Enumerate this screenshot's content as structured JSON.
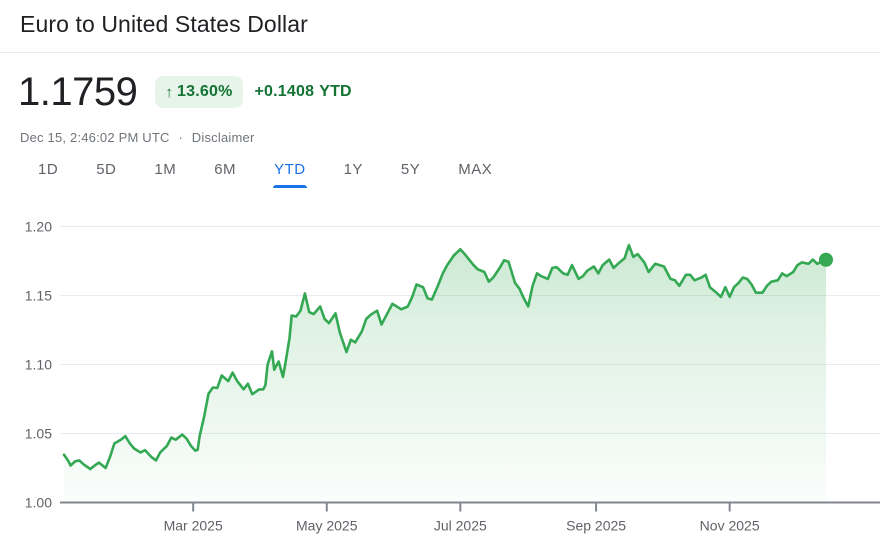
{
  "header": {
    "title": "Euro to United States Dollar"
  },
  "quote": {
    "price": "1.1759",
    "arrow": "↑",
    "change_percent": "13.60%",
    "change_abs": "+0.1408",
    "change_period": "YTD",
    "timestamp": "Dec 15, 2:46:02 PM UTC",
    "separator": "·",
    "disclaimer": "Disclaimer"
  },
  "tabs": [
    {
      "label": "1D",
      "active": false
    },
    {
      "label": "5D",
      "active": false
    },
    {
      "label": "1M",
      "active": false
    },
    {
      "label": "6M",
      "active": false
    },
    {
      "label": "YTD",
      "active": true
    },
    {
      "label": "1Y",
      "active": false
    },
    {
      "label": "5Y",
      "active": false
    },
    {
      "label": "MAX",
      "active": false
    }
  ],
  "active_tab": "YTD",
  "colors": {
    "text_primary": "#202124",
    "text_secondary": "#5f6368",
    "text_tertiary": "#70757a",
    "accent_blue": "#1a73e8",
    "positive_green_text": "#137333",
    "badge_bg": "#e6f4ea",
    "line_green": "#34a853",
    "grid": "#e8eaed",
    "axis": "#80868b"
  },
  "chart_data": {
    "type": "area",
    "title": "",
    "xlabel": "",
    "ylabel": "",
    "grid": true,
    "legend": false,
    "x_unit": "day_of_year_2025",
    "x_range": [
      0,
      348
    ],
    "ylim": [
      1.0,
      1.2
    ],
    "y_ticks": [
      {
        "label": "1.20",
        "value": 1.2
      },
      {
        "label": "1.15",
        "value": 1.15
      },
      {
        "label": "1.10",
        "value": 1.1
      },
      {
        "label": "1.05",
        "value": 1.05
      },
      {
        "label": "1.00",
        "value": 1.0
      }
    ],
    "x_ticks": [
      {
        "label": "Mar 2025",
        "day": 59
      },
      {
        "label": "May 2025",
        "day": 120
      },
      {
        "label": "Jul 2025",
        "day": 181
      },
      {
        "label": "Sep 2025",
        "day": 243
      },
      {
        "label": "Nov 2025",
        "day": 304
      }
    ],
    "end_point": {
      "day": 348,
      "value": 1.1759
    },
    "series": [
      {
        "name": "EUR/USD",
        "points": [
          [
            0,
            1.0346
          ],
          [
            2,
            1.03
          ],
          [
            3,
            1.0268
          ],
          [
            5,
            1.0297
          ],
          [
            7,
            1.0305
          ],
          [
            9,
            1.0276
          ],
          [
            12,
            1.0243
          ],
          [
            14,
            1.0268
          ],
          [
            16,
            1.0289
          ],
          [
            19,
            1.025
          ],
          [
            21,
            1.033
          ],
          [
            23,
            1.0428
          ],
          [
            26,
            1.0455
          ],
          [
            28,
            1.0481
          ],
          [
            30,
            1.043
          ],
          [
            32,
            1.0391
          ],
          [
            35,
            1.0362
          ],
          [
            37,
            1.038
          ],
          [
            40,
            1.0328
          ],
          [
            42,
            1.0305
          ],
          [
            44,
            1.0364
          ],
          [
            47,
            1.041
          ],
          [
            49,
            1.047
          ],
          [
            51,
            1.0455
          ],
          [
            54,
            1.0492
          ],
          [
            56,
            1.0462
          ],
          [
            58,
            1.041
          ],
          [
            60,
            1.0375
          ],
          [
            61,
            1.0382
          ],
          [
            62,
            1.0487
          ],
          [
            64,
            1.062
          ],
          [
            66,
            1.0788
          ],
          [
            68,
            1.0833
          ],
          [
            70,
            1.083
          ],
          [
            72,
            1.092
          ],
          [
            75,
            1.088
          ],
          [
            77,
            1.0941
          ],
          [
            79,
            1.0882
          ],
          [
            82,
            1.082
          ],
          [
            84,
            1.0861
          ],
          [
            86,
            1.0785
          ],
          [
            89,
            1.0818
          ],
          [
            91,
            1.082
          ],
          [
            92,
            1.0851
          ],
          [
            93,
            1.1
          ],
          [
            95,
            1.1096
          ],
          [
            96,
            1.0962
          ],
          [
            98,
            1.1022
          ],
          [
            100,
            1.091
          ],
          [
            101,
            1.1
          ],
          [
            103,
            1.119
          ],
          [
            104,
            1.1355
          ],
          [
            106,
            1.1348
          ],
          [
            108,
            1.139
          ],
          [
            110,
            1.1515
          ],
          [
            112,
            1.138
          ],
          [
            114,
            1.1365
          ],
          [
            117,
            1.142
          ],
          [
            119,
            1.133
          ],
          [
            121,
            1.13
          ],
          [
            124,
            1.137
          ],
          [
            126,
            1.123
          ],
          [
            129,
            1.109
          ],
          [
            131,
            1.118
          ],
          [
            133,
            1.116
          ],
          [
            136,
            1.124
          ],
          [
            138,
            1.133
          ],
          [
            140,
            1.136
          ],
          [
            143,
            1.139
          ],
          [
            145,
            1.129
          ],
          [
            147,
            1.135
          ],
          [
            150,
            1.144
          ],
          [
            152,
            1.142
          ],
          [
            154,
            1.14
          ],
          [
            157,
            1.142
          ],
          [
            159,
            1.149
          ],
          [
            161,
            1.158
          ],
          [
            164,
            1.156
          ],
          [
            166,
            1.148
          ],
          [
            168,
            1.147
          ],
          [
            171,
            1.158
          ],
          [
            173,
            1.166
          ],
          [
            175,
            1.172
          ],
          [
            178,
            1.179
          ],
          [
            181,
            1.1835
          ],
          [
            183,
            1.18
          ],
          [
            185,
            1.176
          ],
          [
            187,
            1.172
          ],
          [
            189,
            1.169
          ],
          [
            192,
            1.167
          ],
          [
            194,
            1.16
          ],
          [
            196,
            1.163
          ],
          [
            199,
            1.17
          ],
          [
            201,
            1.1755
          ],
          [
            203,
            1.1745
          ],
          [
            206,
            1.159
          ],
          [
            208,
            1.155
          ],
          [
            210,
            1.148
          ],
          [
            212,
            1.142
          ],
          [
            214,
            1.157
          ],
          [
            216,
            1.166
          ],
          [
            218,
            1.164
          ],
          [
            221,
            1.162
          ],
          [
            223,
            1.17
          ],
          [
            225,
            1.1705
          ],
          [
            228,
            1.166
          ],
          [
            230,
            1.165
          ],
          [
            232,
            1.172
          ],
          [
            235,
            1.162
          ],
          [
            237,
            1.164
          ],
          [
            239,
            1.168
          ],
          [
            242,
            1.171
          ],
          [
            244,
            1.166
          ],
          [
            246,
            1.172
          ],
          [
            249,
            1.176
          ],
          [
            251,
            1.17
          ],
          [
            253,
            1.173
          ],
          [
            256,
            1.177
          ],
          [
            258,
            1.1865
          ],
          [
            260,
            1.178
          ],
          [
            262,
            1.18
          ],
          [
            265,
            1.174
          ],
          [
            267,
            1.167
          ],
          [
            270,
            1.173
          ],
          [
            272,
            1.172
          ],
          [
            274,
            1.171
          ],
          [
            277,
            1.162
          ],
          [
            279,
            1.161
          ],
          [
            281,
            1.157
          ],
          [
            284,
            1.165
          ],
          [
            286,
            1.165
          ],
          [
            288,
            1.161
          ],
          [
            291,
            1.163
          ],
          [
            293,
            1.165
          ],
          [
            295,
            1.156
          ],
          [
            298,
            1.152
          ],
          [
            300,
            1.149
          ],
          [
            302,
            1.156
          ],
          [
            304,
            1.149
          ],
          [
            306,
            1.156
          ],
          [
            308,
            1.159
          ],
          [
            310,
            1.163
          ],
          [
            312,
            1.162
          ],
          [
            314,
            1.158
          ],
          [
            316,
            1.152
          ],
          [
            319,
            1.152
          ],
          [
            321,
            1.157
          ],
          [
            323,
            1.16
          ],
          [
            326,
            1.161
          ],
          [
            328,
            1.166
          ],
          [
            330,
            1.164
          ],
          [
            333,
            1.167
          ],
          [
            335,
            1.172
          ],
          [
            337,
            1.174
          ],
          [
            340,
            1.173
          ],
          [
            342,
            1.176
          ],
          [
            344,
            1.173
          ],
          [
            346,
            1.1745
          ],
          [
            348,
            1.1759
          ]
        ]
      }
    ]
  }
}
